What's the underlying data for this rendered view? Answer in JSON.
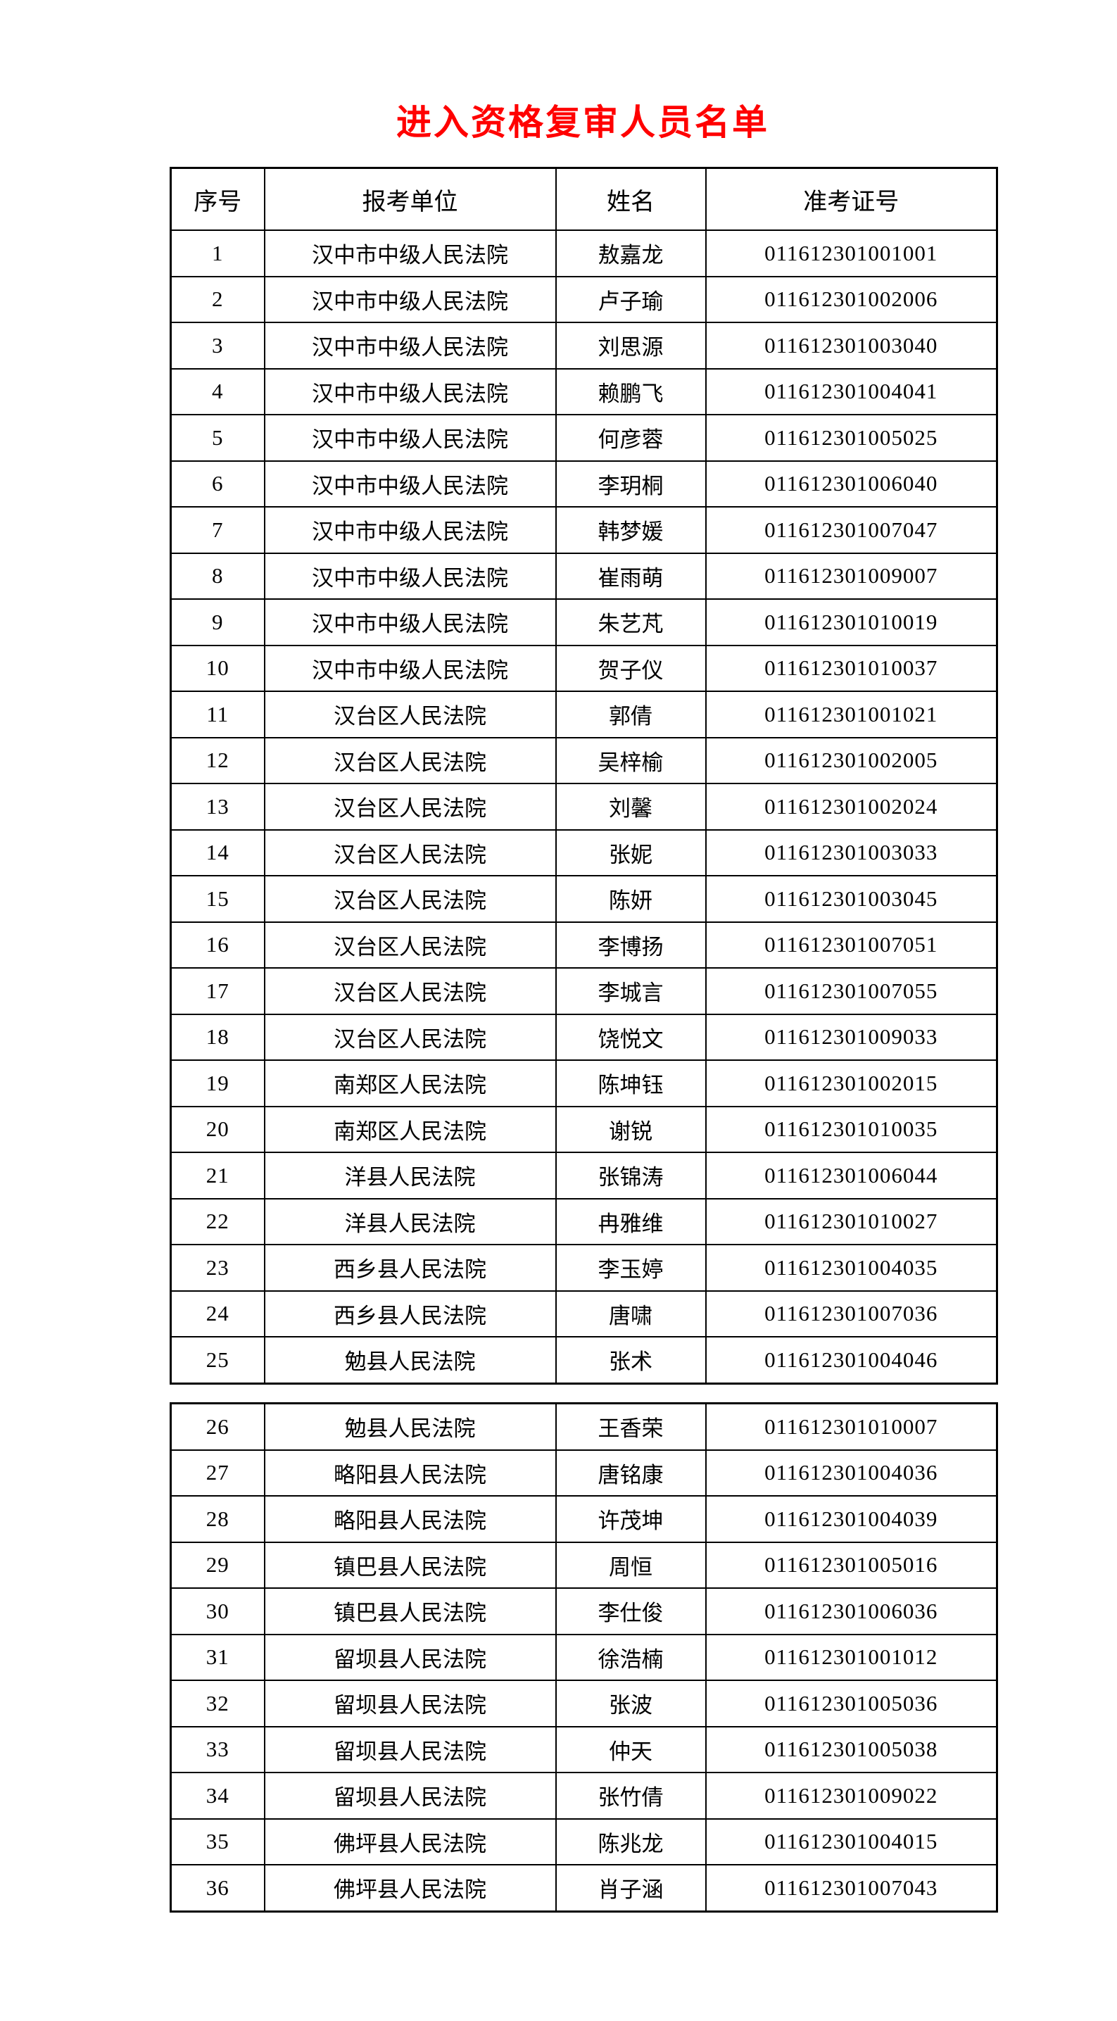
{
  "theme": {
    "background": "#ffffff",
    "title_color": "#ff0000",
    "text_color": "#000000",
    "border_color": "#000000"
  },
  "document": {
    "title": "进入资格复审人员名单"
  },
  "table": {
    "headers": [
      "序号",
      "报考单位",
      "姓名",
      "准考证号"
    ],
    "sections": [
      {
        "name": "section-1",
        "start": 0,
        "end": 25,
        "has_header": true
      },
      {
        "name": "section-2",
        "start": 25,
        "end": 36,
        "has_header": false
      }
    ],
    "rows": [
      [
        "1",
        "汉中市中级人民法院",
        "敖嘉龙",
        "011612301001001"
      ],
      [
        "2",
        "汉中市中级人民法院",
        "卢子瑜",
        "011612301002006"
      ],
      [
        "3",
        "汉中市中级人民法院",
        "刘思源",
        "011612301003040"
      ],
      [
        "4",
        "汉中市中级人民法院",
        "赖鹏飞",
        "011612301004041"
      ],
      [
        "5",
        "汉中市中级人民法院",
        "何彦蓉",
        "011612301005025"
      ],
      [
        "6",
        "汉中市中级人民法院",
        "李玥桐",
        "011612301006040"
      ],
      [
        "7",
        "汉中市中级人民法院",
        "韩梦媛",
        "011612301007047"
      ],
      [
        "8",
        "汉中市中级人民法院",
        "崔雨萌",
        "011612301009007"
      ],
      [
        "9",
        "汉中市中级人民法院",
        "朱艺芃",
        "011612301010019"
      ],
      [
        "10",
        "汉中市中级人民法院",
        "贺子仪",
        "011612301010037"
      ],
      [
        "11",
        "汉台区人民法院",
        "郭倩",
        "011612301001021"
      ],
      [
        "12",
        "汉台区人民法院",
        "吴梓榆",
        "011612301002005"
      ],
      [
        "13",
        "汉台区人民法院",
        "刘馨",
        "011612301002024"
      ],
      [
        "14",
        "汉台区人民法院",
        "张妮",
        "011612301003033"
      ],
      [
        "15",
        "汉台区人民法院",
        "陈妍",
        "011612301003045"
      ],
      [
        "16",
        "汉台区人民法院",
        "李博扬",
        "011612301007051"
      ],
      [
        "17",
        "汉台区人民法院",
        "李城言",
        "011612301007055"
      ],
      [
        "18",
        "汉台区人民法院",
        "饶悦文",
        "011612301009033"
      ],
      [
        "19",
        "南郑区人民法院",
        "陈坤钰",
        "011612301002015"
      ],
      [
        "20",
        "南郑区人民法院",
        "谢锐",
        "011612301010035"
      ],
      [
        "21",
        "洋县人民法院",
        "张锦涛",
        "011612301006044"
      ],
      [
        "22",
        "洋县人民法院",
        "冉雅维",
        "011612301010027"
      ],
      [
        "23",
        "西乡县人民法院",
        "李玉婷",
        "011612301004035"
      ],
      [
        "24",
        "西乡县人民法院",
        "唐啸",
        "011612301007036"
      ],
      [
        "25",
        "勉县人民法院",
        "张术",
        "011612301004046"
      ],
      [
        "26",
        "勉县人民法院",
        "王香荣",
        "011612301010007"
      ],
      [
        "27",
        "略阳县人民法院",
        "唐铭康",
        "011612301004036"
      ],
      [
        "28",
        "略阳县人民法院",
        "许茂坤",
        "011612301004039"
      ],
      [
        "29",
        "镇巴县人民法院",
        "周恒",
        "011612301005016"
      ],
      [
        "30",
        "镇巴县人民法院",
        "李仕俊",
        "011612301006036"
      ],
      [
        "31",
        "留坝县人民法院",
        "徐浩楠",
        "011612301001012"
      ],
      [
        "32",
        "留坝县人民法院",
        "张波",
        "011612301005036"
      ],
      [
        "33",
        "留坝县人民法院",
        "仲天",
        "011612301005038"
      ],
      [
        "34",
        "留坝县人民法院",
        "张竹倩",
        "011612301009022"
      ],
      [
        "35",
        "佛坪县人民法院",
        "陈兆龙",
        "011612301004015"
      ],
      [
        "36",
        "佛坪县人民法院",
        "肖子涵",
        "011612301007043"
      ]
    ]
  }
}
